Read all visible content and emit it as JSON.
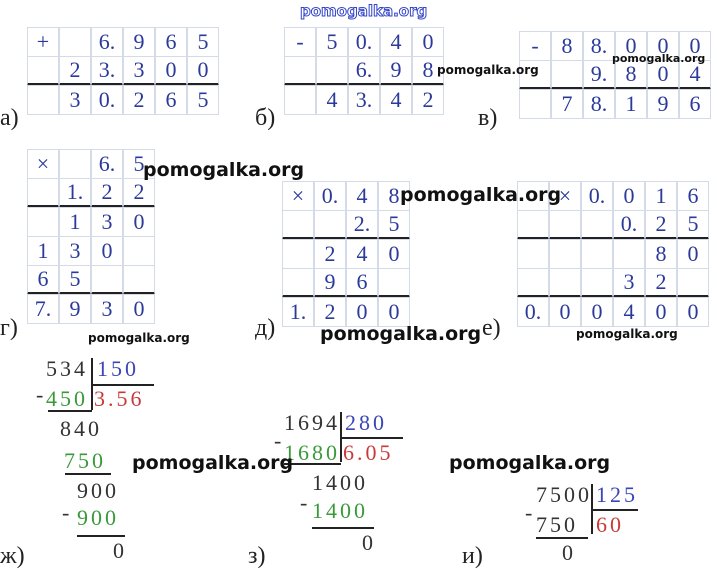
{
  "watermark": "pomogalka.org",
  "colors": {
    "digits": "#2b3a9a",
    "subtrahend": "#3a9a3a",
    "quotient": "#c83a3a",
    "divisor": "#3a45b8"
  },
  "problems": {
    "a": {
      "label": "а)",
      "rows": [
        [
          "+",
          "",
          "6.",
          "9",
          "6",
          "5"
        ],
        [
          "",
          "2",
          "3.",
          "3",
          "0",
          "0"
        ],
        [
          "",
          "3",
          "0.",
          "2",
          "6",
          "5"
        ]
      ]
    },
    "b": {
      "label": "б)",
      "rows": [
        [
          "-",
          "5",
          "0.",
          "4",
          "0"
        ],
        [
          "",
          "",
          "6.",
          "9",
          "8"
        ],
        [
          "",
          "4",
          "3.",
          "4",
          "2"
        ]
      ]
    },
    "v": {
      "label": "в)",
      "rows": [
        [
          "-",
          "8",
          "8.",
          "0",
          "0",
          "0"
        ],
        [
          "",
          "",
          "9.",
          "8",
          "0",
          "4"
        ],
        [
          "",
          "7",
          "8.",
          "1",
          "9",
          "6"
        ]
      ]
    },
    "g": {
      "label": "г)",
      "rows": [
        [
          "×",
          "",
          "6.",
          "5"
        ],
        [
          "",
          "1.",
          "2",
          "2"
        ],
        [
          "",
          "1",
          "3",
          "0"
        ],
        [
          "1",
          "3",
          "0",
          ""
        ],
        [
          "6",
          "5",
          "",
          ""
        ],
        [
          "7.",
          "9",
          "3",
          "0"
        ]
      ]
    },
    "d": {
      "label": "д)",
      "rows": [
        [
          "×",
          "0.",
          "4",
          "8"
        ],
        [
          "",
          "",
          "2.",
          "5"
        ],
        [
          "",
          "2",
          "4",
          "0"
        ],
        [
          "",
          "9",
          "6",
          ""
        ],
        [
          "1.",
          "2",
          "0",
          "0"
        ]
      ]
    },
    "e": {
      "label": "е)",
      "rows": [
        [
          "",
          "×",
          "0.",
          "0",
          "1",
          "6"
        ],
        [
          "",
          "",
          "",
          "0.",
          "2",
          "5"
        ],
        [
          "",
          "",
          "",
          "",
          "8",
          "0"
        ],
        [
          "",
          "",
          "",
          "3",
          "2",
          ""
        ],
        [
          "0.",
          "0",
          "0",
          "4",
          "0",
          "0"
        ]
      ]
    },
    "zh": {
      "label": "ж)",
      "dividend": "534",
      "divisor": "150",
      "sub1": "450",
      "quotient": "3.56",
      "r1": "840",
      "sub2": "750",
      "r2": "900",
      "sub3": "900",
      "rem": "0",
      "minus": "-"
    },
    "z": {
      "label": "з)",
      "dividend": "1694",
      "divisor": "280",
      "sub1": "1680",
      "quotient": "6.05",
      "r1": "1400",
      "sub2": "1400",
      "rem": "0",
      "minus": "-"
    },
    "i": {
      "label": "и)",
      "dividend": "7500",
      "divisor": "125",
      "sub1": "750",
      "quotient": "60",
      "rem": "0",
      "minus": "-"
    }
  }
}
